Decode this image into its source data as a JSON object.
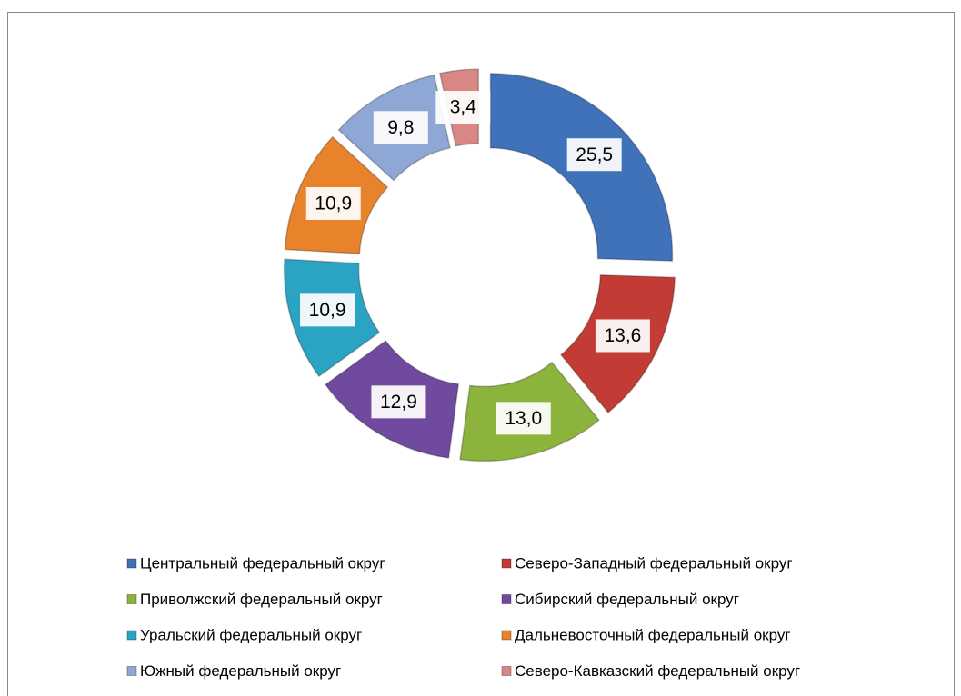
{
  "chart_data": {
    "type": "pie",
    "categories": [
      "Центральный федеральный округ",
      "Северо-Западный федеральный округ",
      "Приволжский федеральный округ",
      "Сибирский федеральный округ",
      "Уральский федеральный округ",
      "Дальневосточный федеральный округ",
      "Южный федеральный округ",
      "Северо-Кавказский федеральный округ"
    ],
    "values": [
      25.5,
      13.6,
      13.0,
      12.9,
      10.9,
      10.9,
      9.8,
      3.4
    ],
    "value_labels": [
      "25,5",
      "13,6",
      "13,0",
      "12,9",
      "10,9",
      "10,9",
      "9,8",
      "3,4"
    ],
    "colors": [
      "#3f72b8",
      "#c23b35",
      "#8cb43c",
      "#6f4a9e",
      "#2aa4c2",
      "#e8822b",
      "#8ea7d4",
      "#d88784"
    ],
    "legend": "bottom"
  }
}
